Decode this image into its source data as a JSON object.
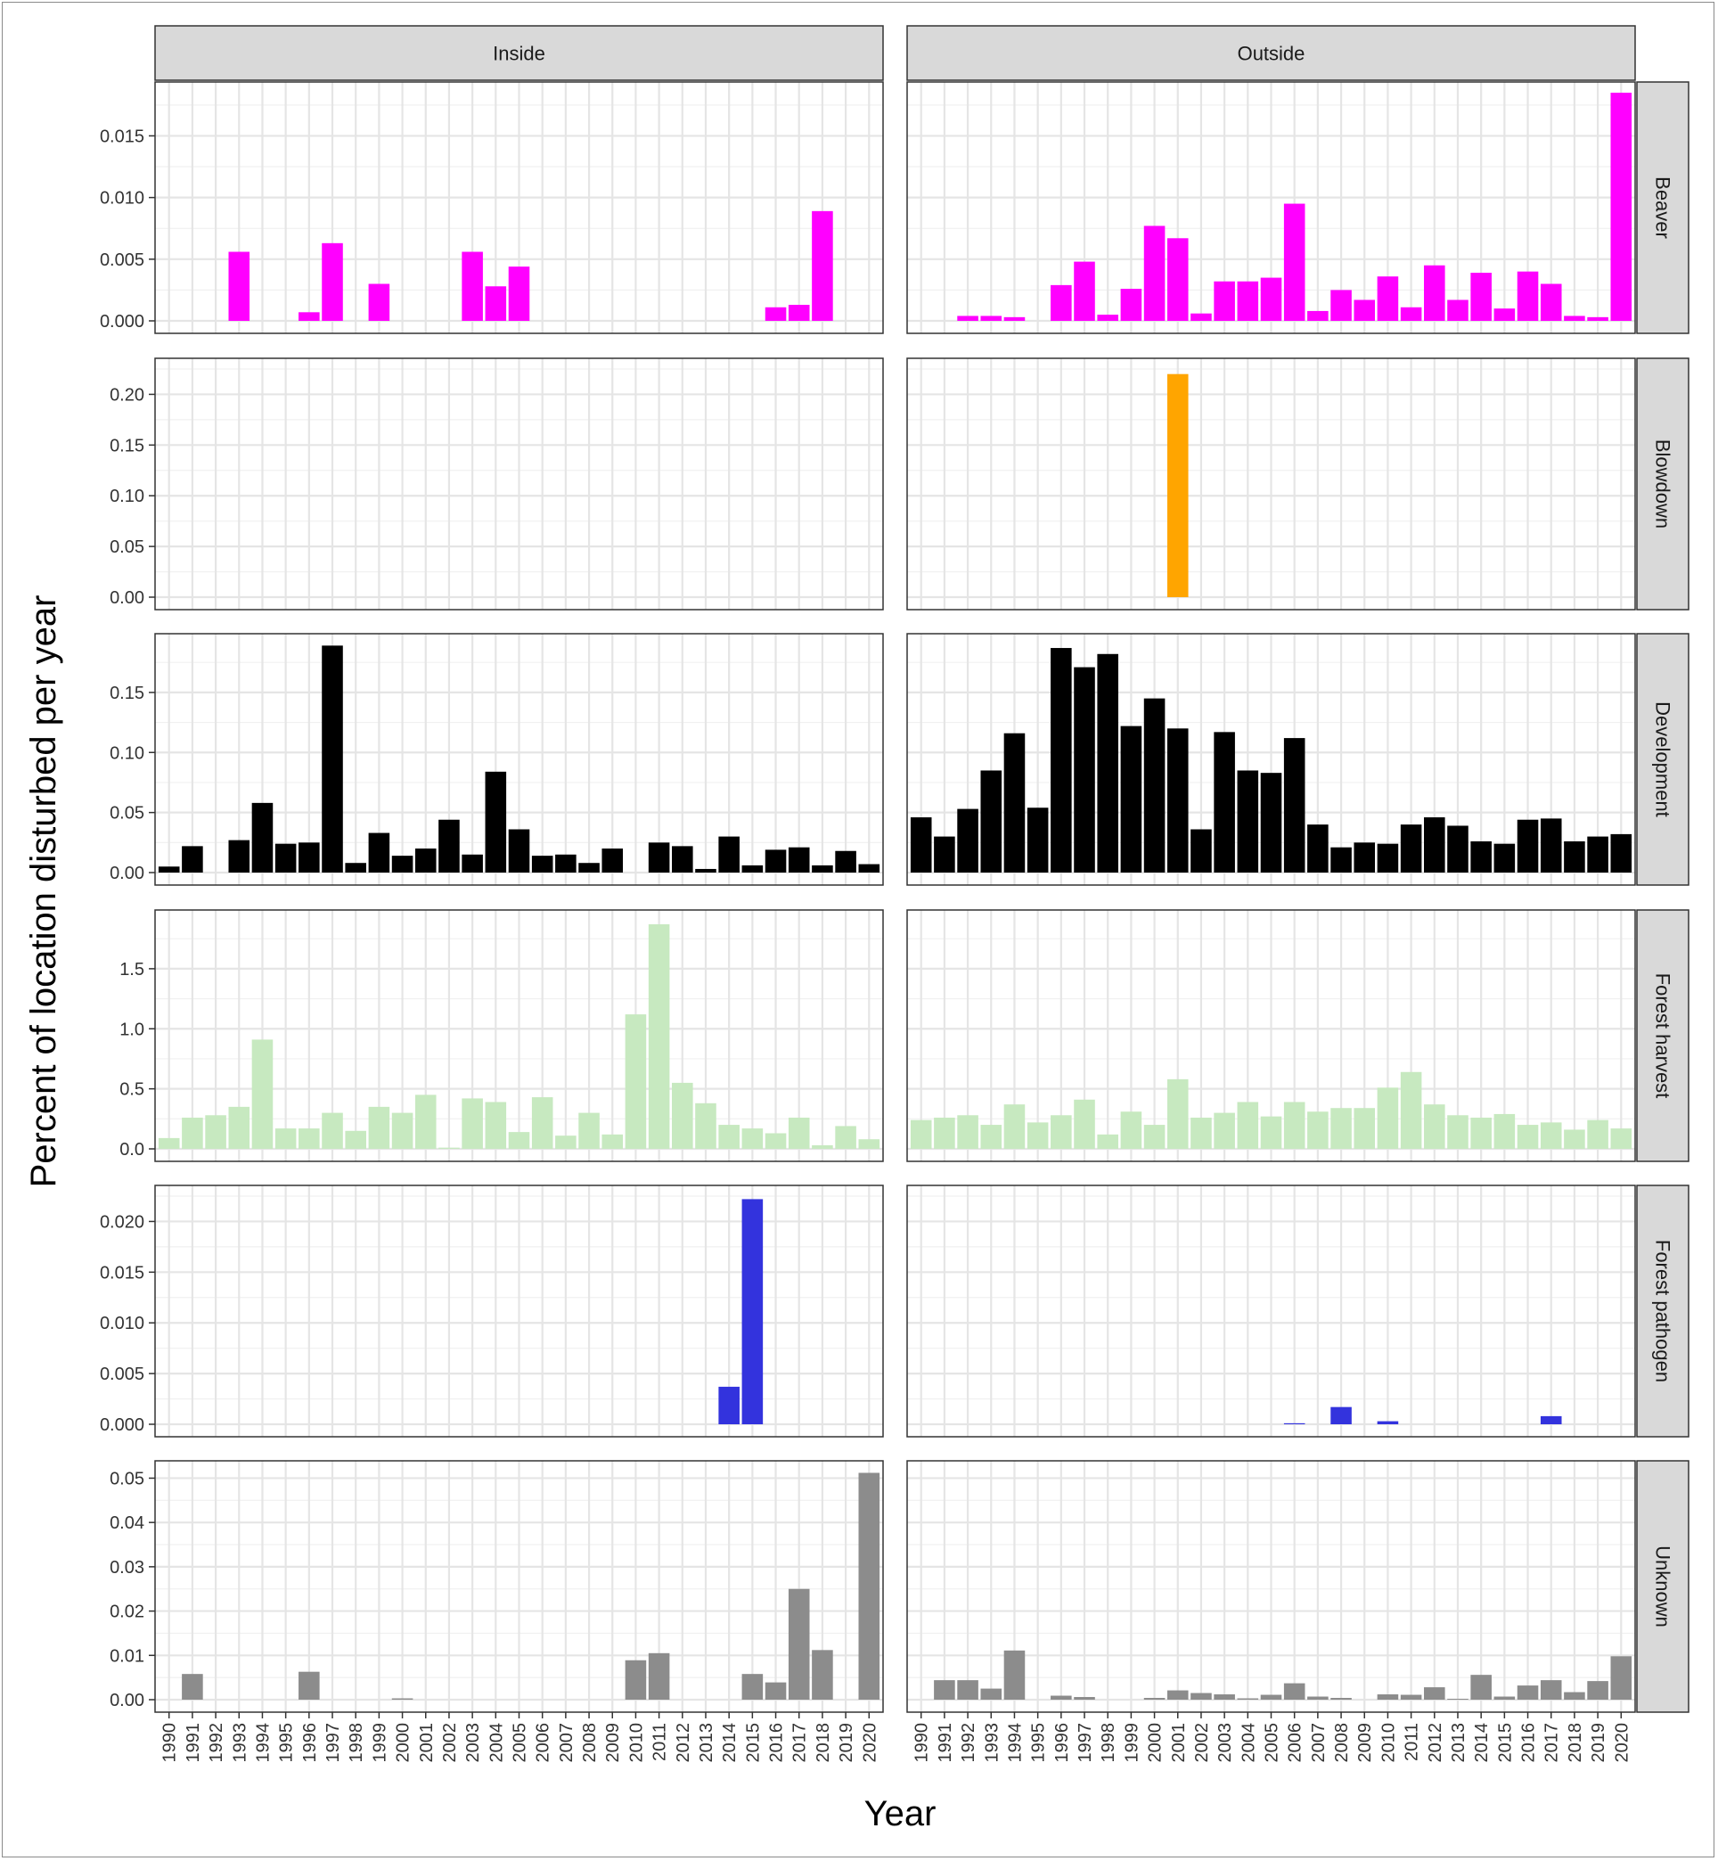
{
  "chart_data": {
    "type": "bar",
    "layout": "facet-grid",
    "xlabel": "Year",
    "ylabel": "Percent of location disturbed per year",
    "columns": [
      "Inside",
      "Outside"
    ],
    "x": [
      1990,
      1991,
      1992,
      1993,
      1994,
      1995,
      1996,
      1997,
      1998,
      1999,
      2000,
      2001,
      2002,
      2003,
      2004,
      2005,
      2006,
      2007,
      2008,
      2009,
      2010,
      2011,
      2012,
      2013,
      2014,
      2015,
      2016,
      2017,
      2018,
      2019,
      2020
    ],
    "x_tick_labels": [
      "1990",
      "1991",
      "1992",
      "1993",
      "1994",
      "1995",
      "1996",
      "1997",
      "1998",
      "1999",
      "2000",
      "2001",
      "2002",
      "2003",
      "2004",
      "2005",
      "2006",
      "2007",
      "2008",
      "2009",
      "2010",
      "2011",
      "2012",
      "2013",
      "2014",
      "2015",
      "2016",
      "2017",
      "2018",
      "2019",
      "2020"
    ],
    "grid": true,
    "rows": [
      {
        "name": "Beaver",
        "color": "#ff00ff",
        "ylim": [
          0,
          0.0185
        ],
        "y_ticks": [
          0,
          0.005,
          0.01,
          0.015
        ],
        "y_tick_labels": [
          "0.000",
          "0.005",
          "0.010",
          "0.015"
        ],
        "inside": [
          0,
          0,
          0,
          0.0056,
          0,
          0,
          0.0007,
          0.0063,
          0,
          0.003,
          0,
          0,
          0,
          0.0056,
          0.0028,
          0.0044,
          0,
          0,
          0,
          0,
          0,
          0,
          0,
          0,
          0,
          0,
          0.0011,
          0.0013,
          0.0089,
          0,
          0
        ],
        "outside": [
          0,
          0,
          0.0004,
          0.0004,
          0.0003,
          0,
          0.0029,
          0.0048,
          0.0005,
          0.0026,
          0.0077,
          0.0067,
          0.0006,
          0.0032,
          0.0032,
          0.0035,
          0.0095,
          0.0008,
          0.0025,
          0.0017,
          0.0036,
          0.0011,
          0.0045,
          0.0017,
          0.0039,
          0.001,
          0.004,
          0.003,
          0.0004,
          0.0003,
          0.0185
        ]
      },
      {
        "name": "Blowdown",
        "color": "#ffa500",
        "ylim": [
          0,
          0.225
        ],
        "y_ticks": [
          0,
          0.05,
          0.1,
          0.15,
          0.2
        ],
        "y_tick_labels": [
          "0.00",
          "0.05",
          "0.10",
          "0.15",
          "0.20"
        ],
        "inside": [
          0,
          0,
          0,
          0,
          0,
          0,
          0,
          0,
          0,
          0,
          0,
          0,
          0,
          0,
          0,
          0,
          0,
          0,
          0,
          0,
          0,
          0,
          0,
          0,
          0,
          0,
          0,
          0,
          0,
          0,
          0
        ],
        "outside": [
          0,
          0,
          0,
          0,
          0,
          0,
          0,
          0,
          0,
          0,
          0,
          0.22,
          0,
          0,
          0,
          0,
          0,
          0,
          0,
          0,
          0,
          0,
          0,
          0,
          0,
          0,
          0,
          0,
          0,
          0,
          0
        ]
      },
      {
        "name": "Development",
        "color": "#000000",
        "ylim": [
          0,
          0.19
        ],
        "y_ticks": [
          0,
          0.05,
          0.1,
          0.15
        ],
        "y_tick_labels": [
          "0.00",
          "0.05",
          "0.10",
          "0.15"
        ],
        "inside": [
          0.005,
          0.022,
          0,
          0.027,
          0.058,
          0.024,
          0.025,
          0.189,
          0.008,
          0.033,
          0.014,
          0.02,
          0.044,
          0.015,
          0.084,
          0.036,
          0.014,
          0.015,
          0.008,
          0.02,
          0,
          0.025,
          0.022,
          0.003,
          0.03,
          0.006,
          0.019,
          0.021,
          0.006,
          0.018,
          0.007
        ],
        "outside": [
          0.046,
          0.03,
          0.053,
          0.085,
          0.116,
          0.054,
          0.187,
          0.171,
          0.182,
          0.122,
          0.145,
          0.12,
          0.036,
          0.117,
          0.085,
          0.083,
          0.112,
          0.04,
          0.021,
          0.025,
          0.024,
          0.04,
          0.046,
          0.039,
          0.026,
          0.024,
          0.044,
          0.045,
          0.026,
          0.03,
          0.032
        ]
      },
      {
        "name": "Forest harvest",
        "color": "#c7e9c0",
        "ylim": [
          0,
          1.9
        ],
        "y_ticks": [
          0,
          0.5,
          1,
          1.5
        ],
        "y_tick_labels": [
          "0.0",
          "0.5",
          "1.0",
          "1.5"
        ],
        "inside": [
          0.09,
          0.26,
          0.28,
          0.35,
          0.91,
          0.17,
          0.17,
          0.3,
          0.15,
          0.35,
          0.3,
          0.45,
          0.01,
          0.42,
          0.39,
          0.14,
          0.43,
          0.11,
          0.3,
          0.12,
          1.12,
          1.87,
          0.55,
          0.38,
          0.2,
          0.17,
          0.13,
          0.26,
          0.03,
          0.19,
          0.08
        ],
        "outside": [
          0.24,
          0.26,
          0.28,
          0.2,
          0.37,
          0.22,
          0.28,
          0.41,
          0.12,
          0.31,
          0.2,
          0.58,
          0.26,
          0.3,
          0.39,
          0.27,
          0.39,
          0.31,
          0.34,
          0.34,
          0.51,
          0.64,
          0.37,
          0.28,
          0.26,
          0.29,
          0.2,
          0.22,
          0.16,
          0.24,
          0.17
        ]
      },
      {
        "name": "Forest pathogen",
        "color": "#3333dd",
        "ylim": [
          0,
          0.0225
        ],
        "y_ticks": [
          0,
          0.005,
          0.01,
          0.015,
          0.02
        ],
        "y_tick_labels": [
          "0.000",
          "0.005",
          "0.010",
          "0.015",
          "0.020"
        ],
        "inside": [
          0,
          0,
          0,
          0,
          0,
          0,
          0,
          0,
          0,
          0,
          0,
          0,
          0,
          0,
          0,
          0,
          0,
          0,
          0,
          0,
          0,
          0,
          0,
          0,
          0.0037,
          0.0222,
          0,
          0,
          0,
          0,
          0
        ],
        "outside": [
          0,
          0,
          0,
          0,
          0,
          0,
          0,
          0,
          0,
          0,
          0,
          0,
          0,
          0,
          0,
          0,
          0.0001,
          0,
          0.0017,
          0,
          0.0003,
          0,
          0,
          0,
          0,
          0,
          0,
          0.0008,
          0,
          0,
          0
        ]
      },
      {
        "name": "Unknown",
        "color": "#8c8c8c",
        "ylim": [
          0,
          0.0515
        ],
        "y_ticks": [
          0,
          0.01,
          0.02,
          0.03,
          0.04,
          0.05
        ],
        "y_tick_labels": [
          "0.00",
          "0.01",
          "0.02",
          "0.03",
          "0.04",
          "0.05"
        ],
        "inside": [
          0,
          0.0058,
          0,
          0,
          0,
          0,
          0.0063,
          0,
          0,
          0,
          0.0003,
          0,
          0,
          0,
          0,
          0,
          0,
          0,
          0,
          0,
          0.0089,
          0.0105,
          0,
          0,
          0,
          0.0058,
          0.0039,
          0.025,
          0.0112,
          0,
          0.0512
        ],
        "outside": [
          0,
          0.0044,
          0.0044,
          0.0025,
          0.0111,
          0,
          0.0009,
          0.0006,
          0,
          0,
          0.0004,
          0.0021,
          0.0015,
          0.0012,
          0.0003,
          0.0011,
          0.0037,
          0.0007,
          0.0004,
          0,
          0.0012,
          0.0011,
          0.0028,
          0.0002,
          0.0056,
          0.0007,
          0.0032,
          0.0044,
          0.0017,
          0.0042,
          0.0098
        ]
      }
    ]
  }
}
